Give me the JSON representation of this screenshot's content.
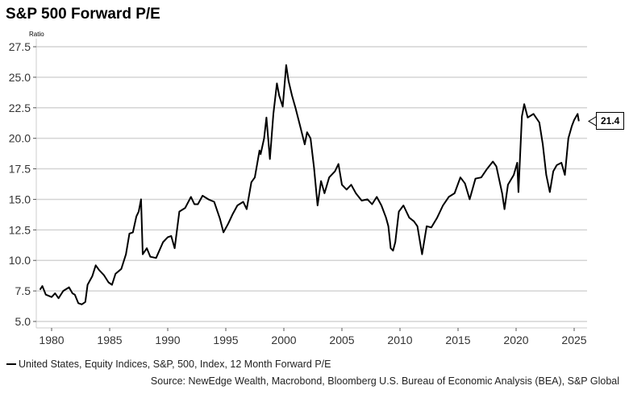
{
  "chart_data": {
    "type": "line",
    "title": "S&P 500 Forward P/E",
    "ylabel": "Ratio",
    "xlabel": "",
    "ylim": [
      5.0,
      27.5
    ],
    "xlim": [
      1979,
      2026.2
    ],
    "yticks": [
      "5.0",
      "7.5",
      "10.0",
      "12.5",
      "15.0",
      "17.5",
      "20.0",
      "22.5",
      "25.0",
      "27.5"
    ],
    "xticks": [
      "1980",
      "1985",
      "1990",
      "1995",
      "2000",
      "2005",
      "2010",
      "2015",
      "2020",
      "2025"
    ],
    "grid": true,
    "legend_position": "bottom-left",
    "series": [
      {
        "name": "United States, Equity Indices, S&P, 500, Index, 12 Month Forward P/E",
        "color": "#000000",
        "last_value_label": "21.4",
        "x": [
          1979.0,
          1979.2,
          1979.5,
          1980.0,
          1980.3,
          1980.6,
          1981.0,
          1981.5,
          1981.8,
          1982.0,
          1982.3,
          1982.6,
          1982.9,
          1983.1,
          1983.5,
          1983.8,
          1984.1,
          1984.5,
          1984.9,
          1985.2,
          1985.5,
          1986.0,
          1986.4,
          1986.7,
          1987.0,
          1987.3,
          1987.5,
          1987.7,
          1987.85,
          1988.2,
          1988.5,
          1989.0,
          1989.6,
          1990.0,
          1990.3,
          1990.6,
          1991.0,
          1991.5,
          1992.0,
          1992.3,
          1992.6,
          1993.0,
          1993.5,
          1994.0,
          1994.5,
          1994.8,
          1995.2,
          1995.6,
          1996.0,
          1996.5,
          1996.8,
          1997.2,
          1997.5,
          1997.9,
          1998.0,
          1998.3,
          1998.5,
          1998.8,
          1999.1,
          1999.4,
          1999.6,
          1999.9,
          2000.2,
          2000.4,
          2000.7,
          2001.0,
          2001.4,
          2001.8,
          2002.0,
          2002.3,
          2002.6,
          2002.9,
          2003.2,
          2003.5,
          2003.9,
          2004.4,
          2004.7,
          2005.0,
          2005.4,
          2005.8,
          2006.2,
          2006.7,
          2007.2,
          2007.6,
          2008.0,
          2008.4,
          2008.8,
          2009.0,
          2009.2,
          2009.4,
          2009.6,
          2009.9,
          2010.3,
          2010.8,
          2011.2,
          2011.5,
          2011.9,
          2012.3,
          2012.7,
          2013.2,
          2013.7,
          2014.2,
          2014.7,
          2015.2,
          2015.6,
          2016.0,
          2016.5,
          2017.0,
          2017.5,
          2018.0,
          2018.3,
          2018.8,
          2019.0,
          2019.3,
          2019.8,
          2020.1,
          2020.2,
          2020.5,
          2020.7,
          2021.0,
          2021.5,
          2022.0,
          2022.3,
          2022.6,
          2022.9,
          2023.2,
          2023.5,
          2023.9,
          2024.2,
          2024.5,
          2024.8,
          2025.0,
          2025.3,
          2025.4
        ],
        "values": [
          7.6,
          7.9,
          7.2,
          7.0,
          7.3,
          6.9,
          7.5,
          7.8,
          7.3,
          7.2,
          6.5,
          6.4,
          6.6,
          8.0,
          8.7,
          9.6,
          9.2,
          8.8,
          8.2,
          8.0,
          8.9,
          9.3,
          10.5,
          12.2,
          12.3,
          13.6,
          14.0,
          15.0,
          10.5,
          11.0,
          10.3,
          10.2,
          11.5,
          11.9,
          12.0,
          11.0,
          14.0,
          14.3,
          15.2,
          14.6,
          14.6,
          15.3,
          15.0,
          14.8,
          13.4,
          12.3,
          13.0,
          13.8,
          14.5,
          14.8,
          14.2,
          16.4,
          16.8,
          19.0,
          18.7,
          20.0,
          21.7,
          18.3,
          22.0,
          24.5,
          23.5,
          22.6,
          26.0,
          24.7,
          23.5,
          22.5,
          21.0,
          19.5,
          20.5,
          20.0,
          17.6,
          14.5,
          16.5,
          15.5,
          16.8,
          17.3,
          17.9,
          16.2,
          15.8,
          16.2,
          15.5,
          14.9,
          15.0,
          14.6,
          15.2,
          14.5,
          13.5,
          12.8,
          11.0,
          10.8,
          11.5,
          14.0,
          14.5,
          13.5,
          13.2,
          12.8,
          10.5,
          12.8,
          12.7,
          13.5,
          14.5,
          15.2,
          15.5,
          16.8,
          16.3,
          15.0,
          16.7,
          16.8,
          17.5,
          18.1,
          17.7,
          15.5,
          14.2,
          16.2,
          17.0,
          18.0,
          15.6,
          21.8,
          22.8,
          21.7,
          22.0,
          21.3,
          19.5,
          17.0,
          15.6,
          17.3,
          17.8,
          18.0,
          17.0,
          20.0,
          21.0,
          21.5,
          22.0,
          21.4
        ]
      }
    ],
    "source": "Source: NewEdge Wealth, Macrobond, Bloomberg U.S. Bureau of Economic Analysis (BEA), S&P Global"
  }
}
